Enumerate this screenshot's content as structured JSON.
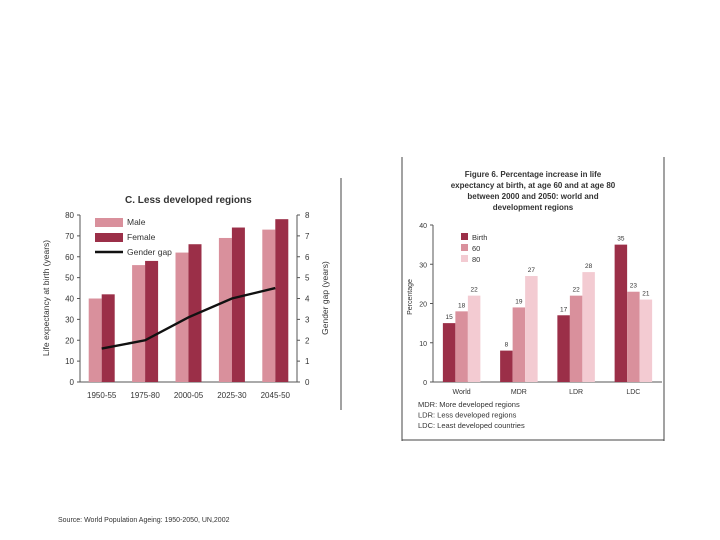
{
  "source_note": "Source: World Population Ageing: 1950-2050, UN,2002",
  "chart_data": [
    {
      "type": "bar",
      "title": "C. Less developed regions",
      "categories": [
        "1950-55",
        "1975-80",
        "2000-05",
        "2025-30",
        "2045-50"
      ],
      "series": [
        {
          "name": "Male",
          "values": [
            40,
            56,
            62,
            69,
            73
          ],
          "color": "#d9909c"
        },
        {
          "name": "Female",
          "values": [
            42,
            58,
            66,
            74,
            78
          ],
          "color": "#9b2f48"
        }
      ],
      "line_series": {
        "name": "Gender gap",
        "axis": "right",
        "values": [
          1.6,
          2.0,
          3.1,
          4.0,
          4.5
        ],
        "color": "#111111"
      },
      "ylabel": "Life expectancy at birth (years)",
      "y2label": "Gender gap (years)",
      "ylim": [
        0,
        80
      ],
      "yticks": [
        0,
        10,
        20,
        30,
        40,
        50,
        60,
        70,
        80
      ],
      "y2lim": [
        0,
        8
      ],
      "y2ticks": [
        0,
        1,
        2,
        3,
        4,
        5,
        6,
        7,
        8
      ],
      "legend": [
        "Male",
        "Female",
        "Gender gap"
      ],
      "legend_position": "top-left",
      "grid": false
    },
    {
      "type": "bar",
      "title_lines": [
        "Figure 6.  Percentage increase in life",
        "expectancy at birth, at age 60 and at age 80",
        "between 2000 and 2050: world and",
        "development regions"
      ],
      "categories": [
        "World",
        "MDR",
        "LDR",
        "LDC"
      ],
      "series": [
        {
          "name": "Birth",
          "values": [
            15,
            8,
            17,
            35
          ],
          "color": "#9b2f48"
        },
        {
          "name": "60",
          "values": [
            18,
            19,
            22,
            23
          ],
          "color": "#d9909c"
        },
        {
          "name": "80",
          "values": [
            22,
            27,
            28,
            21
          ],
          "color": "#f3cbd2"
        }
      ],
      "ylabel": "Percentage",
      "ylim": [
        0,
        40
      ],
      "yticks": [
        0,
        10,
        20,
        30,
        40
      ],
      "legend": [
        "Birth",
        "60",
        "80"
      ],
      "legend_position": "top-left",
      "notes": [
        "MDR:  More developed regions",
        "LDR:  Less developed regions",
        "LDC:  Least developed countries"
      ],
      "grid": false
    }
  ]
}
